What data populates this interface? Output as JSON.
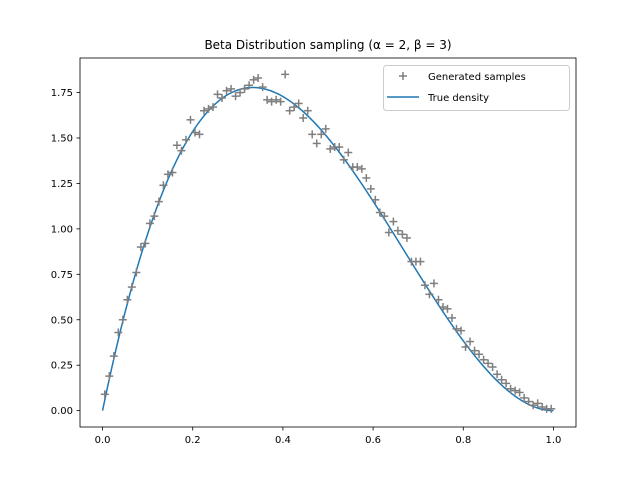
{
  "chart_data": {
    "type": "scatter",
    "title": "Beta Distribution sampling (α = 2, β = 3)",
    "xlabel": "",
    "ylabel": "",
    "xlim": [
      -0.05,
      1.05
    ],
    "ylim": [
      -0.09,
      1.94
    ],
    "x_ticks": [
      0.0,
      0.2,
      0.4,
      0.6,
      0.8,
      1.0
    ],
    "x_tick_labels": [
      "0.0",
      "0.2",
      "0.4",
      "0.6",
      "0.8",
      "1.0"
    ],
    "y_ticks": [
      0.0,
      0.25,
      0.5,
      0.75,
      1.0,
      1.25,
      1.5,
      1.75
    ],
    "y_tick_labels": [
      "0.00",
      "0.25",
      "0.50",
      "0.75",
      "1.00",
      "1.25",
      "1.50",
      "1.75"
    ],
    "grid": false,
    "legend_position": "top-right",
    "colors": {
      "samples": "#7f7f7f",
      "density": "#1f77b4"
    },
    "series": [
      {
        "name": "Generated samples",
        "kind": "scatter",
        "marker": "plus",
        "x": [
          0.005,
          0.015,
          0.025,
          0.035,
          0.045,
          0.055,
          0.065,
          0.075,
          0.085,
          0.095,
          0.105,
          0.115,
          0.125,
          0.135,
          0.145,
          0.155,
          0.165,
          0.175,
          0.185,
          0.195,
          0.205,
          0.215,
          0.225,
          0.235,
          0.245,
          0.255,
          0.265,
          0.275,
          0.285,
          0.295,
          0.305,
          0.315,
          0.325,
          0.335,
          0.345,
          0.355,
          0.365,
          0.375,
          0.385,
          0.395,
          0.405,
          0.415,
          0.425,
          0.435,
          0.445,
          0.455,
          0.465,
          0.475,
          0.485,
          0.495,
          0.505,
          0.515,
          0.525,
          0.535,
          0.545,
          0.555,
          0.565,
          0.575,
          0.585,
          0.595,
          0.605,
          0.615,
          0.625,
          0.635,
          0.645,
          0.655,
          0.665,
          0.675,
          0.685,
          0.695,
          0.705,
          0.715,
          0.725,
          0.735,
          0.745,
          0.755,
          0.765,
          0.775,
          0.785,
          0.795,
          0.805,
          0.815,
          0.825,
          0.835,
          0.845,
          0.855,
          0.865,
          0.875,
          0.885,
          0.895,
          0.905,
          0.915,
          0.925,
          0.935,
          0.945,
          0.955,
          0.965,
          0.975,
          0.985,
          0.995
        ],
        "y": [
          0.09,
          0.19,
          0.3,
          0.43,
          0.5,
          0.61,
          0.68,
          0.76,
          0.9,
          0.92,
          1.03,
          1.07,
          1.15,
          1.24,
          1.3,
          1.31,
          1.46,
          1.43,
          1.49,
          1.6,
          1.53,
          1.52,
          1.65,
          1.66,
          1.67,
          1.74,
          1.72,
          1.76,
          1.77,
          1.73,
          1.75,
          1.77,
          1.79,
          1.82,
          1.83,
          1.78,
          1.71,
          1.7,
          1.71,
          1.7,
          1.85,
          1.65,
          1.67,
          1.69,
          1.61,
          1.65,
          1.52,
          1.47,
          1.52,
          1.55,
          1.44,
          1.45,
          1.45,
          1.38,
          1.42,
          1.34,
          1.34,
          1.33,
          1.28,
          1.22,
          1.16,
          1.09,
          1.07,
          0.98,
          1.04,
          0.99,
          0.97,
          0.95,
          0.82,
          0.82,
          0.82,
          0.69,
          0.64,
          0.7,
          0.61,
          0.57,
          0.56,
          0.51,
          0.45,
          0.44,
          0.35,
          0.38,
          0.33,
          0.31,
          0.28,
          0.26,
          0.24,
          0.2,
          0.17,
          0.15,
          0.12,
          0.11,
          0.1,
          0.07,
          0.05,
          0.03,
          0.04,
          0.02,
          0.01,
          0.01
        ]
      },
      {
        "name": "True density",
        "kind": "line",
        "function": "12*x*(1-x)^2",
        "x_range": [
          0.0,
          1.0
        ]
      }
    ]
  }
}
